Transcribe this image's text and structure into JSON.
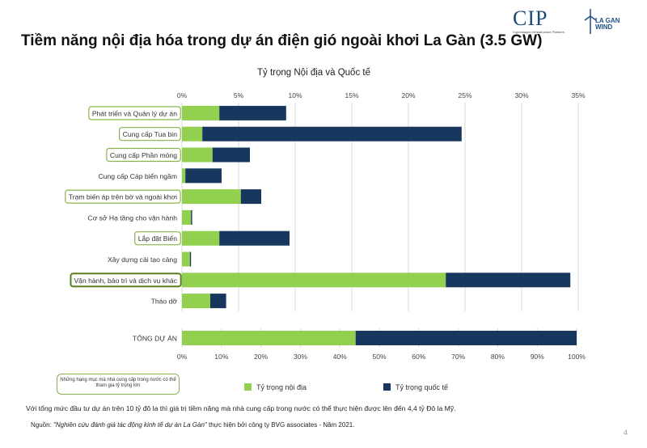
{
  "title": "Tiềm năng nội địa hóa trong dự án điện gió ngoài khơi La Gàn (3.5 GW)",
  "logos": {
    "cip": "CIP",
    "cip_sub": "Copenhagen Infrastructure Partners",
    "lagan_line1": "LA GAN",
    "lagan_line2": "WIND"
  },
  "colors": {
    "domestic": "#92d050",
    "international": "#17375e",
    "highlight_border": "#8bb34a",
    "highlight_border_strong": "#5a7d1e"
  },
  "chart_data": [
    {
      "type": "bar",
      "orientation": "horizontal",
      "stacked": true,
      "title": "Tỷ trọng Nội địa và Quốc tế",
      "xlim": [
        0,
        35
      ],
      "ticks": [
        "0%",
        "5%",
        "10%",
        "15%",
        "20%",
        "25%",
        "30%",
        "35%"
      ],
      "tick_values": [
        0,
        5,
        10,
        15,
        20,
        25,
        30,
        35
      ],
      "grid": true,
      "categories": [
        "Phát triển và Quản lý dự án",
        "Cung cấp Tua bin",
        "Cung cấp Phần móng",
        "Cung cấp Cáp biển ngầm",
        "Trạm biến áp trên bờ và ngoài khơi",
        "Cơ sở Hạ tầng cho vận hành",
        "Lắp đặt Biển",
        "Xây dựng cải tạo cảng",
        "Vận hành, bảo trì và dịch vụ khác",
        "Tháo dỡ"
      ],
      "highlighted": [
        true,
        true,
        true,
        false,
        true,
        false,
        true,
        false,
        true,
        false
      ],
      "series": [
        {
          "name": "Tỷ trọng nội địa",
          "values": [
            3.3,
            1.8,
            2.7,
            0.3,
            5.2,
            0.8,
            3.3,
            0.7,
            23.3,
            2.5
          ]
        },
        {
          "name": "Tỷ trọng quốc tế",
          "values": [
            5.9,
            22.9,
            3.3,
            3.2,
            1.8,
            0.1,
            6.2,
            0.1,
            11.0,
            1.4
          ]
        }
      ]
    },
    {
      "type": "bar",
      "orientation": "horizontal",
      "stacked": true,
      "xlim": [
        0,
        100
      ],
      "ticks": [
        "0%",
        "10%",
        "20%",
        "30%",
        "40%",
        "50%",
        "60%",
        "70%",
        "80%",
        "90%",
        "100%"
      ],
      "tick_values": [
        0,
        10,
        20,
        30,
        40,
        50,
        60,
        70,
        80,
        90,
        100
      ],
      "categories": [
        "TỔNG DỰ ÁN"
      ],
      "series": [
        {
          "name": "Tỷ trọng nội địa",
          "values": [
            44
          ]
        },
        {
          "name": "Tỷ trọng quốc tế",
          "values": [
            56
          ]
        }
      ]
    }
  ],
  "note": "Những hạng mục mà nhà cung cấp trong nước có thể tham gia tỷ trọng lớn",
  "legend": {
    "domestic": "Tỷ trọng nội địa",
    "international": "Tỷ trọng quốc tế"
  },
  "summary": "Với tổng mức đầu tư dự án trên 10 tỷ đô la thì giá trị tiềm năng mà nhà cung cấp trong nước có thể thực hiện được lên đến 4,4 tỷ Đô la Mỹ.",
  "source": {
    "prefix": "Nguồn: ",
    "italic": "\"Nghiên cứu đánh giá tác động kinh tế dự án La Gàn\"",
    "rest": " thực hiện bởi công ty BVG associates - Năm 2021."
  },
  "page_number": "4"
}
